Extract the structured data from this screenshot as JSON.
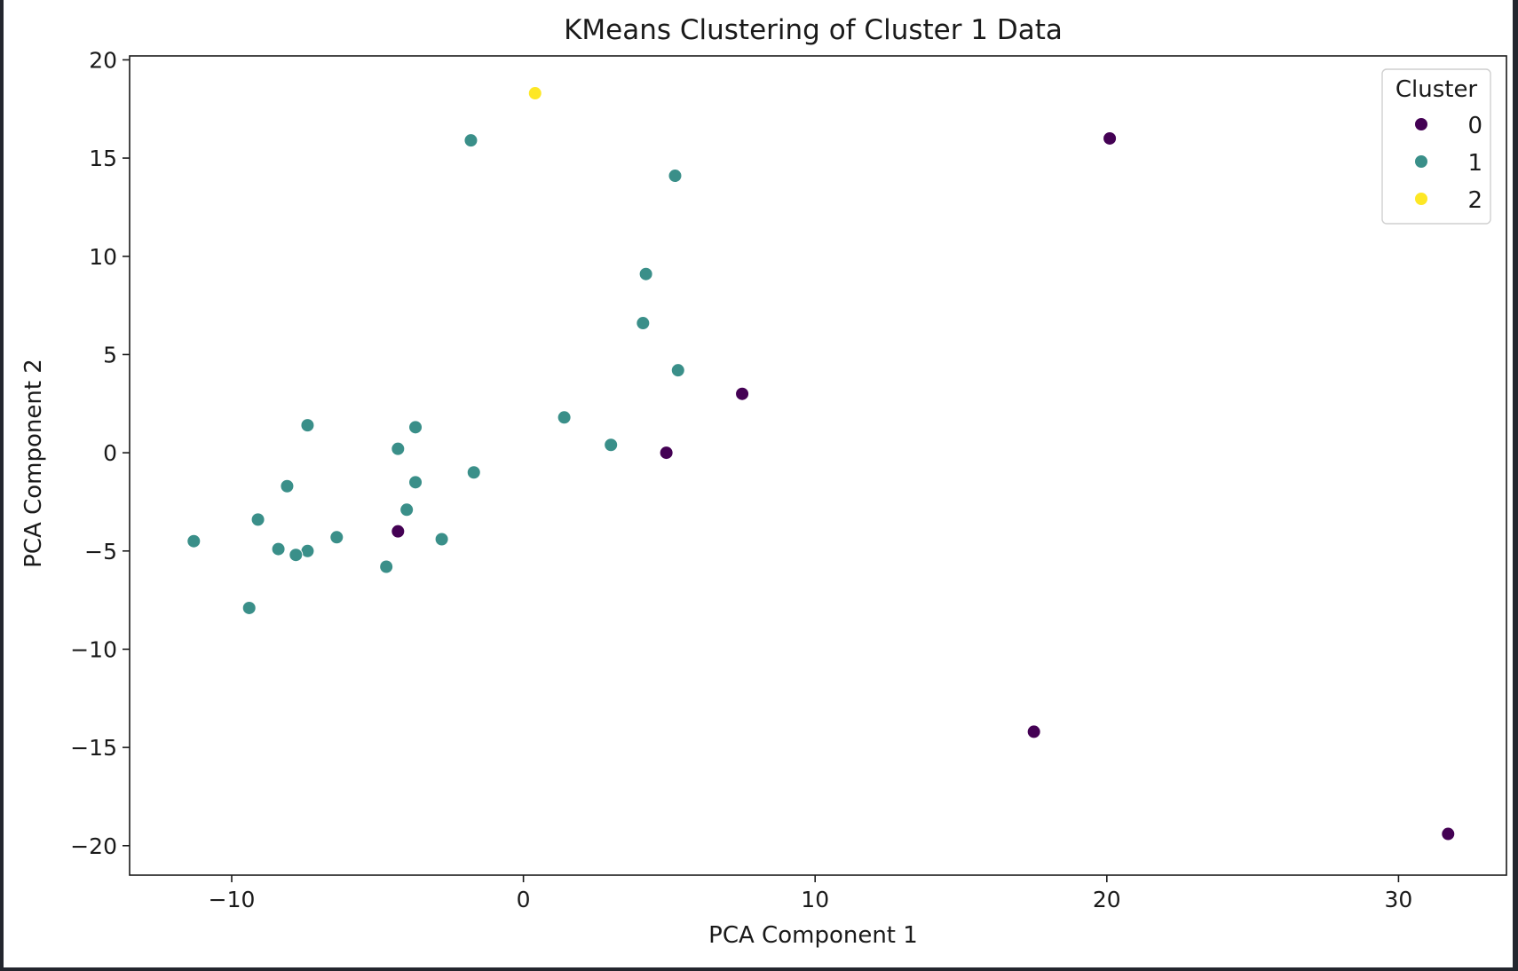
{
  "chart_data": {
    "type": "scatter",
    "title": "KMeans Clustering of Cluster 1 Data",
    "xlabel": "PCA Component 1",
    "ylabel": "PCA Component 2",
    "xlim": [
      -13.5,
      33.7
    ],
    "ylim": [
      -21.5,
      20.2
    ],
    "xticks": [
      -10,
      0,
      10,
      20,
      30
    ],
    "xtick_labels": [
      "−10",
      "0",
      "10",
      "20",
      "30"
    ],
    "yticks": [
      -20,
      -15,
      -10,
      -5,
      0,
      5,
      10,
      15,
      20
    ],
    "ytick_labels": [
      "−20",
      "−15",
      "−10",
      "−5",
      "0",
      "5",
      "10",
      "15",
      "20"
    ],
    "grid": false,
    "legend": {
      "title": "Cluster",
      "placement": "top-right"
    },
    "series": [
      {
        "name": "0",
        "color": "#440154",
        "points": [
          {
            "x": 20.1,
            "y": 16.0
          },
          {
            "x": 7.5,
            "y": 3.0
          },
          {
            "x": 4.9,
            "y": 0.0
          },
          {
            "x": -4.3,
            "y": -4.0
          },
          {
            "x": 17.5,
            "y": -14.2
          },
          {
            "x": 31.7,
            "y": -19.4
          }
        ]
      },
      {
        "name": "1",
        "color": "#3a8f89",
        "points": [
          {
            "x": -1.8,
            "y": 15.9
          },
          {
            "x": 5.2,
            "y": 14.1
          },
          {
            "x": 4.2,
            "y": 9.1
          },
          {
            "x": 4.1,
            "y": 6.6
          },
          {
            "x": 5.3,
            "y": 4.2
          },
          {
            "x": 1.4,
            "y": 1.8
          },
          {
            "x": 3.0,
            "y": 0.4
          },
          {
            "x": -7.4,
            "y": 1.4
          },
          {
            "x": -3.7,
            "y": 1.3
          },
          {
            "x": -4.3,
            "y": 0.2
          },
          {
            "x": -1.7,
            "y": -1.0
          },
          {
            "x": -3.7,
            "y": -1.5
          },
          {
            "x": -8.1,
            "y": -1.7
          },
          {
            "x": -4.0,
            "y": -2.9
          },
          {
            "x": -9.1,
            "y": -3.4
          },
          {
            "x": -6.4,
            "y": -4.3
          },
          {
            "x": -2.8,
            "y": -4.4
          },
          {
            "x": -11.3,
            "y": -4.5
          },
          {
            "x": -8.4,
            "y": -4.9
          },
          {
            "x": -7.4,
            "y": -5.0
          },
          {
            "x": -7.8,
            "y": -5.2
          },
          {
            "x": -4.7,
            "y": -5.8
          },
          {
            "x": -9.4,
            "y": -7.9
          }
        ]
      },
      {
        "name": "2",
        "color": "#fde725",
        "points": [
          {
            "x": 0.4,
            "y": 18.3
          }
        ]
      }
    ]
  }
}
